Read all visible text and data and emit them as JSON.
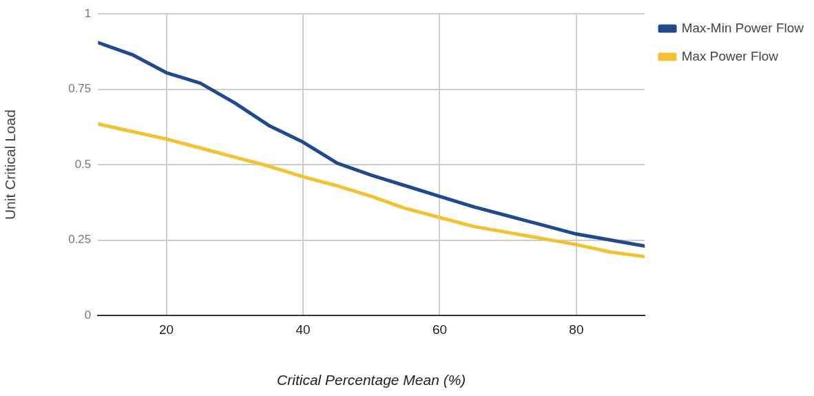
{
  "chart_data": {
    "type": "line",
    "xlabel": "Critical Percentage Mean (%)",
    "ylabel": "Unit Critical Load",
    "x": [
      10,
      15,
      20,
      25,
      30,
      35,
      40,
      45,
      50,
      55,
      60,
      65,
      70,
      75,
      80,
      85,
      90
    ],
    "series": [
      {
        "name": "Max-Min Power Flow",
        "color": "#1f4a8c",
        "values": [
          0.905,
          0.865,
          0.805,
          0.77,
          0.705,
          0.63,
          0.575,
          0.505,
          0.465,
          0.43,
          0.395,
          0.36,
          0.33,
          0.3,
          0.27,
          0.25,
          0.23
        ]
      },
      {
        "name": "Max Power Flow",
        "color": "#f2c232",
        "values": [
          0.635,
          0.61,
          0.585,
          0.555,
          0.525,
          0.495,
          0.46,
          0.43,
          0.395,
          0.355,
          0.325,
          0.295,
          0.275,
          0.255,
          0.235,
          0.21,
          0.195
        ]
      }
    ],
    "xlim": [
      10,
      90
    ],
    "xticks": [
      20,
      40,
      60,
      80
    ],
    "ylim": [
      0,
      1
    ],
    "yticks": [
      0,
      0.25,
      0.5,
      0.75,
      1
    ],
    "grid": true,
    "legend": "top right",
    "marker": "none",
    "line_style": "solid"
  }
}
